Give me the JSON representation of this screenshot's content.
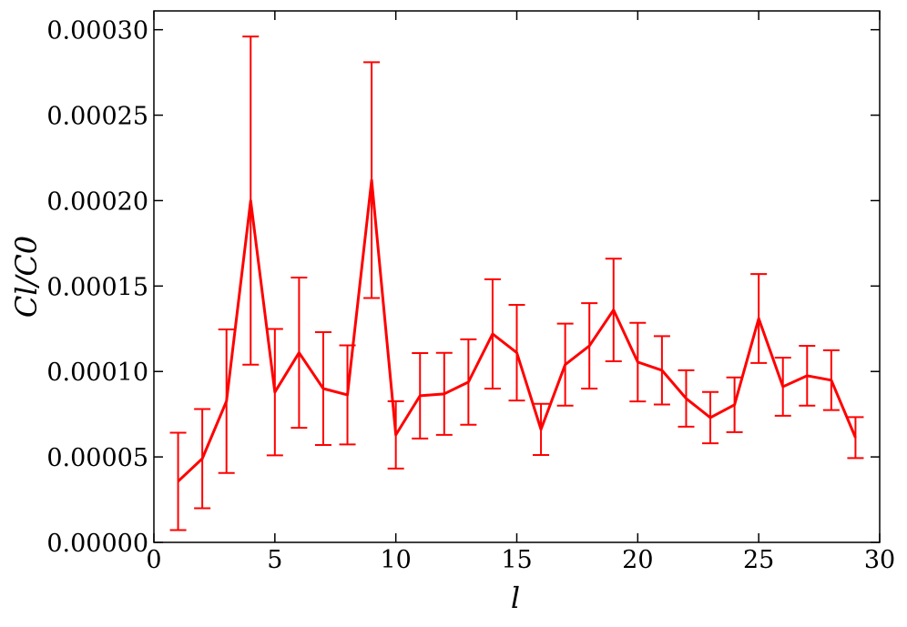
{
  "chart_data": {
    "type": "errorbar-line",
    "xlabel": "l",
    "ylabel": "Cl/C0",
    "color": "#ff0000",
    "x": [
      1,
      2,
      3,
      4,
      5,
      6,
      7,
      8,
      9,
      10,
      11,
      12,
      13,
      14,
      15,
      16,
      17,
      18,
      19,
      20,
      21,
      22,
      23,
      24,
      25,
      26,
      27,
      28,
      29
    ],
    "values": [
      3.57e-05,
      4.9e-05,
      8.26e-05,
      0.0002,
      8.79e-05,
      0.000111,
      9e-05,
      8.63e-05,
      0.000212,
      6.29e-05,
      8.58e-05,
      8.69e-05,
      9.38e-05,
      0.000122,
      0.000111,
      6.61e-05,
      0.000104,
      0.000115,
      0.000136,
      0.0001055,
      0.0001007,
      8.42e-05,
      7.3e-05,
      8.05e-05,
      0.000131,
      9.11e-05,
      9.75e-05,
      9.49e-05,
      6.13e-05
    ],
    "errors": [
      2.85e-05,
      2.9e-05,
      4.2e-05,
      9.6e-05,
      3.7e-05,
      4.4e-05,
      3.3e-05,
      2.9e-05,
      6.9e-05,
      1.97e-05,
      2.5e-05,
      2.4e-05,
      2.5e-05,
      3.2e-05,
      2.8e-05,
      1.5e-05,
      2.4e-05,
      2.5e-05,
      3e-05,
      2.3e-05,
      2e-05,
      1.65e-05,
      1.5e-05,
      1.6e-05,
      2.6e-05,
      1.7e-05,
      1.75e-05,
      1.75e-05,
      1.2e-05
    ],
    "xlim": [
      0,
      30
    ],
    "xticks": [
      0,
      5,
      10,
      15,
      20,
      25,
      30
    ],
    "ylim": [
      0,
      0.000311
    ],
    "yticks": [
      {
        "value": 0,
        "label": "0.00000"
      },
      {
        "value": 5e-05,
        "label": "0.00005"
      },
      {
        "value": 0.0001,
        "label": "0.00010"
      },
      {
        "value": 0.00015,
        "label": "0.00015"
      },
      {
        "value": 0.0002,
        "label": "0.00020"
      },
      {
        "value": 0.00025,
        "label": "0.00025"
      },
      {
        "value": 0.0003,
        "label": "0.00030"
      }
    ]
  }
}
